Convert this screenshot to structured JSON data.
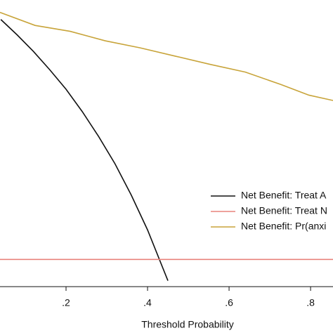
{
  "chart_data": {
    "type": "line",
    "xlabel": "Threshold Probability",
    "xlim": [
      0.038,
      0.855
    ],
    "ylim": [
      -0.046,
      0.439
    ],
    "xticks": [
      {
        "value": 0.2,
        "label": ".2"
      },
      {
        "value": 0.4,
        "label": ".4"
      },
      {
        "value": 0.6,
        "label": ".6"
      },
      {
        "value": 0.8,
        "label": ".8"
      }
    ],
    "legend": "right",
    "series": [
      {
        "name": "Net Benefit: Treat A",
        "color": "#111111",
        "x": [
          0.04,
          0.08,
          0.12,
          0.16,
          0.2,
          0.24,
          0.28,
          0.32,
          0.36,
          0.4,
          0.45
        ],
        "values": [
          0.406,
          0.38,
          0.352,
          0.321,
          0.288,
          0.25,
          0.208,
          0.162,
          0.109,
          0.05,
          -0.036
        ]
      },
      {
        "name": "Net Benefit: Treat N",
        "color": "#e8837c",
        "x": [
          0.038,
          0.855
        ],
        "values": [
          0,
          0
        ]
      },
      {
        "name": "Net Benefit: Pr(anxi",
        "color": "#c8a43a",
        "x": [
          0.038,
          0.124,
          0.21,
          0.296,
          0.382,
          0.468,
          0.554,
          0.64,
          0.727,
          0.796,
          0.855
        ],
        "values": [
          0.418,
          0.396,
          0.386,
          0.37,
          0.358,
          0.344,
          0.33,
          0.317,
          0.296,
          0.278,
          0.269
        ]
      }
    ]
  }
}
